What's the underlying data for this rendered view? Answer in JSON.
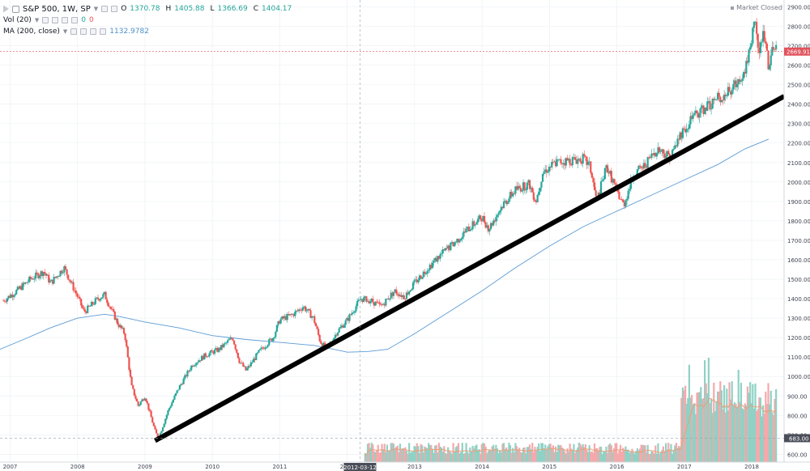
{
  "legend": {
    "symbol": "S&P 500, 1W, SP",
    "open_label": "O",
    "open": "1370.78",
    "high_label": "H",
    "high": "1405.88",
    "low_label": "L",
    "low": "1366.69",
    "close_label": "C",
    "close": "1404.17",
    "vol_name": "Vol (20)",
    "vol_value_1": "0",
    "vol_value_2": "0",
    "ma_name": "MA (200, close)",
    "ma_value": "1132.9782"
  },
  "status": "Market Closed",
  "colors": {
    "up": "#26a69a",
    "down": "#ef5350",
    "ma_line": "#5b9bd5",
    "trendline": "#000000",
    "price_tag": "#e0525c",
    "grid": "#eef0f3",
    "axis_text": "#3d4350",
    "vol_up": "#8fd2c5",
    "vol_down": "#f4a9ab",
    "vol_ma": "#e4a27a"
  },
  "chart_data": {
    "type": "candlestick",
    "interval": "1W",
    "x_tick_labels": [
      "2007",
      "2008",
      "2009",
      "2010",
      "2011",
      "2012",
      "2013",
      "2014",
      "2015",
      "2016",
      "2017",
      "2018"
    ],
    "crosshair_x_label": "2012-03-12",
    "y_tick_labels": [
      "600.00",
      "700.00",
      "800.00",
      "900.00",
      "1000.00",
      "1100.00",
      "1200.00",
      "1300.00",
      "1400.00",
      "1500.00",
      "1600.00",
      "1700.00",
      "1800.00",
      "1900.00",
      "2000.00",
      "2100.00",
      "2200.00",
      "2300.00",
      "2400.00",
      "2500.00",
      "2600.00",
      "2700.00",
      "2800.00",
      "2900.00"
    ],
    "ylim": [
      560,
      2935
    ],
    "xlim": [
      2006.85,
      2018.48
    ],
    "last_price_label": "2669.91",
    "last_price": 2669.91,
    "crosshair_price_label": "683.00",
    "crosshair_price": 683,
    "price_path": [
      [
        2006.9,
        1390
      ],
      [
        2007.1,
        1440
      ],
      [
        2007.3,
        1500
      ],
      [
        2007.5,
        1540
      ],
      [
        2007.6,
        1480
      ],
      [
        2007.8,
        1560
      ],
      [
        2008.0,
        1410
      ],
      [
        2008.1,
        1330
      ],
      [
        2008.3,
        1400
      ],
      [
        2008.4,
        1420
      ],
      [
        2008.6,
        1270
      ],
      [
        2008.7,
        1220
      ],
      [
        2008.8,
        950
      ],
      [
        2008.9,
        850
      ],
      [
        2009.0,
        900
      ],
      [
        2009.15,
        720
      ],
      [
        2009.2,
        680
      ],
      [
        2009.35,
        830
      ],
      [
        2009.5,
        940
      ],
      [
        2009.7,
        1060
      ],
      [
        2009.9,
        1110
      ],
      [
        2010.1,
        1140
      ],
      [
        2010.3,
        1200
      ],
      [
        2010.4,
        1080
      ],
      [
        2010.5,
        1030
      ],
      [
        2010.7,
        1130
      ],
      [
        2010.9,
        1200
      ],
      [
        2011.0,
        1290
      ],
      [
        2011.2,
        1320
      ],
      [
        2011.35,
        1360
      ],
      [
        2011.5,
        1300
      ],
      [
        2011.6,
        1180
      ],
      [
        2011.7,
        1140
      ],
      [
        2011.85,
        1230
      ],
      [
        2012.0,
        1290
      ],
      [
        2012.2,
        1400
      ],
      [
        2012.35,
        1390
      ],
      [
        2012.5,
        1360
      ],
      [
        2012.7,
        1440
      ],
      [
        2012.85,
        1410
      ],
      [
        2013.0,
        1480
      ],
      [
        2013.2,
        1560
      ],
      [
        2013.4,
        1630
      ],
      [
        2013.6,
        1690
      ],
      [
        2013.8,
        1760
      ],
      [
        2014.0,
        1820
      ],
      [
        2014.1,
        1760
      ],
      [
        2014.3,
        1880
      ],
      [
        2014.5,
        1960
      ],
      [
        2014.7,
        1990
      ],
      [
        2014.8,
        1900
      ],
      [
        2014.9,
        2050
      ],
      [
        2015.1,
        2100
      ],
      [
        2015.3,
        2110
      ],
      [
        2015.5,
        2120
      ],
      [
        2015.6,
        2080
      ],
      [
        2015.7,
        1900
      ],
      [
        2015.85,
        2080
      ],
      [
        2016.0,
        1950
      ],
      [
        2016.1,
        1880
      ],
      [
        2016.25,
        2040
      ],
      [
        2016.4,
        2080
      ],
      [
        2016.6,
        2170
      ],
      [
        2016.8,
        2130
      ],
      [
        2016.95,
        2250
      ],
      [
        2017.1,
        2320
      ],
      [
        2017.3,
        2380
      ],
      [
        2017.5,
        2430
      ],
      [
        2017.7,
        2470
      ],
      [
        2017.9,
        2580
      ],
      [
        2018.0,
        2730
      ],
      [
        2018.05,
        2870
      ],
      [
        2018.1,
        2640
      ],
      [
        2018.18,
        2780
      ],
      [
        2018.25,
        2600
      ],
      [
        2018.32,
        2680
      ],
      [
        2018.38,
        2669.91
      ]
    ],
    "ma_200": [
      [
        2006.85,
        1140
      ],
      [
        2007.2,
        1190
      ],
      [
        2007.6,
        1250
      ],
      [
        2008.0,
        1300
      ],
      [
        2008.4,
        1320
      ],
      [
        2008.6,
        1310
      ],
      [
        2009.0,
        1280
      ],
      [
        2009.5,
        1250
      ],
      [
        2010.0,
        1210
      ],
      [
        2010.5,
        1190
      ],
      [
        2011.0,
        1175
      ],
      [
        2011.5,
        1160
      ],
      [
        2011.8,
        1140
      ],
      [
        2012.0,
        1125
      ],
      [
        2012.3,
        1128
      ],
      [
        2012.6,
        1140
      ],
      [
        2013.0,
        1220
      ],
      [
        2013.5,
        1330
      ],
      [
        2014.0,
        1440
      ],
      [
        2014.5,
        1560
      ],
      [
        2015.0,
        1670
      ],
      [
        2015.5,
        1770
      ],
      [
        2016.0,
        1850
      ],
      [
        2016.5,
        1930
      ],
      [
        2017.0,
        2010
      ],
      [
        2017.5,
        2090
      ],
      [
        2017.9,
        2170
      ],
      [
        2018.25,
        2220
      ]
    ],
    "trendline": [
      [
        2009.15,
        670
      ],
      [
        2018.48,
        2440
      ]
    ],
    "volume_region": {
      "start": 2012.25,
      "jump": 2016.95,
      "units": "relative"
    }
  }
}
